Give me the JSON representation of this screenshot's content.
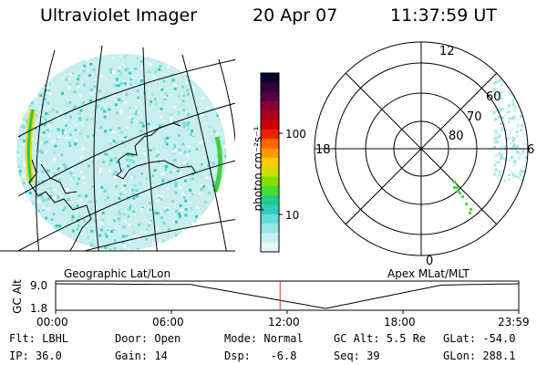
{
  "header": {
    "instrument": "Ultraviolet Imager",
    "date": "20 Apr 07",
    "time": "11:37:59 UT"
  },
  "colorbar": {
    "unit_label": "photon cm⁻²s⁻¹",
    "ticks": [
      "100",
      "10"
    ],
    "colors": [
      "#000033",
      "#330033",
      "#550044",
      "#880033",
      "#aa0022",
      "#cc0000",
      "#ee2200",
      "#ff6600",
      "#ff9900",
      "#ffcc00",
      "#ccdd00",
      "#88dd00",
      "#44dd33",
      "#22cc88",
      "#33ccbb",
      "#66dddd",
      "#99e6e6",
      "#c8f0f0",
      "#e4f6f6"
    ]
  },
  "geo_map": {
    "caption": "Geographic Lat/Lon",
    "swath_color": "#6fd6d6"
  },
  "polar_plot": {
    "caption": "Apex MLat/MLT",
    "mlt_labels": {
      "top": "12",
      "left": "18",
      "right": "6",
      "bottom": "0"
    },
    "lat_labels": [
      "60",
      "70",
      "80"
    ]
  },
  "altitude_timeline": {
    "axis_label": "GC Alt",
    "y_ticks": [
      "9.0",
      "1.8"
    ],
    "x_ticks": [
      "00:00",
      "06:00",
      "12:00",
      "18:00",
      "23:59"
    ],
    "marker_time": "11:37:59",
    "marker_color": "#cc3333"
  },
  "status": {
    "flt": "Flt: LBHL",
    "door": "Door: Open",
    "mode": "Mode: Normal",
    "gc_alt": "GC Alt: 5.5 Re",
    "glat": "GLat: -54.0",
    "ip": "IP: 36.0",
    "gain": "Gain: 14",
    "dsp": "Dsp:   -6.8",
    "seq": "Seq: 39",
    "glon": "GLon: 288.1"
  }
}
